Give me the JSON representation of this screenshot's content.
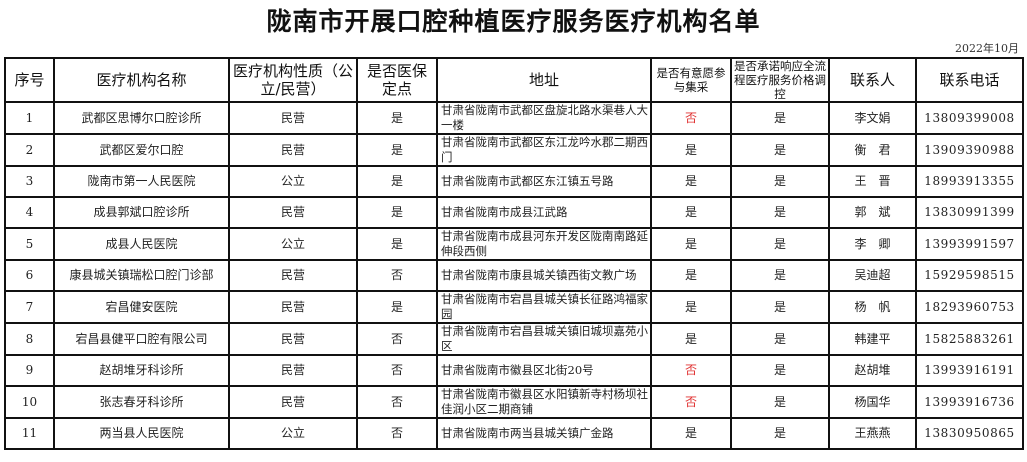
{
  "title": "陇南市开展口腔种植医疗服务医疗机构名单",
  "date": "2022年10月",
  "headers": [
    "序号",
    "医疗机构名称",
    "医疗机构性质（公立/民营）",
    "是否医保定点",
    "地址",
    "是否有意愿参与集采",
    "是否承诺响应全流程医疗服务价格调控",
    "联系人",
    "联系电话"
  ],
  "rows": [
    {
      "no": "1",
      "name": "武都区思博尔口腔诊所",
      "nature": "民营",
      "insured": "是",
      "address": "甘肃省陇南市武都区盘旋北路水渠巷人大一楼",
      "procure": "否",
      "commit": "是",
      "contact": "李文娟",
      "phone": "13809399008"
    },
    {
      "no": "2",
      "name": "武都区爱尔口腔",
      "nature": "民营",
      "insured": "是",
      "address": "甘肃省陇南市武都区东江龙吟水郡二期西门",
      "procure": "是",
      "commit": "是",
      "contact": "衡　君",
      "phone": "13909390988"
    },
    {
      "no": "3",
      "name": "陇南市第一人民医院",
      "nature": "公立",
      "insured": "是",
      "address": "甘肃省陇南市武都区东江镇五号路",
      "procure": "是",
      "commit": "是",
      "contact": "王　晋",
      "phone": "18993913355"
    },
    {
      "no": "4",
      "name": "成县郭斌口腔诊所",
      "nature": "民营",
      "insured": "是",
      "address": "甘肃省陇南市成县江武路",
      "procure": "是",
      "commit": "是",
      "contact": "郭　斌",
      "phone": "13830991399"
    },
    {
      "no": "5",
      "name": "成县人民医院",
      "nature": "公立",
      "insured": "是",
      "address": "甘肃省陇南市成县河东开发区陇南南路延伸段西侧",
      "procure": "是",
      "commit": "是",
      "contact": "李　卿",
      "phone": "13993991597"
    },
    {
      "no": "6",
      "name": "康县城关镇瑞松口腔门诊部",
      "nature": "民营",
      "insured": "否",
      "address": "甘肃省陇南市康县城关镇西街文教广场",
      "procure": "是",
      "commit": "是",
      "contact": "吴迪超",
      "phone": "15929598515"
    },
    {
      "no": "7",
      "name": "宕昌健安医院",
      "nature": "民营",
      "insured": "是",
      "address": "  甘肃省陇南市宕昌县城关镇长征路鸿福家园",
      "procure": "是",
      "commit": "是",
      "contact": "杨　帆",
      "phone": "18293960753"
    },
    {
      "no": "8",
      "name": "宕昌县健平口腔有限公司",
      "nature": "民营",
      "insured": "否",
      "address": "甘肃省陇南市宕昌县城关镇旧城坝嘉苑小区",
      "procure": "是",
      "commit": "是",
      "contact": "韩建平",
      "phone": "15825883261"
    },
    {
      "no": "9",
      "name": "赵胡堆牙科诊所",
      "nature": "民营",
      "insured": "否",
      "address": "甘肃省陇南市徽县区北街20号",
      "procure": "否",
      "commit": "是",
      "contact": "赵胡堆",
      "phone": "13993916191"
    },
    {
      "no": "10",
      "name": "张志春牙科诊所",
      "nature": "民营",
      "insured": "否",
      "address": "甘肃省陇南市徽县区水阳镇新寺村杨坝社佳润小区二期商铺",
      "procure": "否",
      "commit": "是",
      "contact": "杨国华",
      "phone": "13993916736"
    },
    {
      "no": "11",
      "name": "两当县人民医院",
      "nature": "公立",
      "insured": "否",
      "address": "甘肃省陇南市两当县城关镇广金路",
      "procure": "是",
      "commit": "是",
      "contact": "王燕燕",
      "phone": "13830950865"
    }
  ],
  "colors": {
    "negative": "#e03030",
    "text": "#222222",
    "border": "#111111"
  }
}
